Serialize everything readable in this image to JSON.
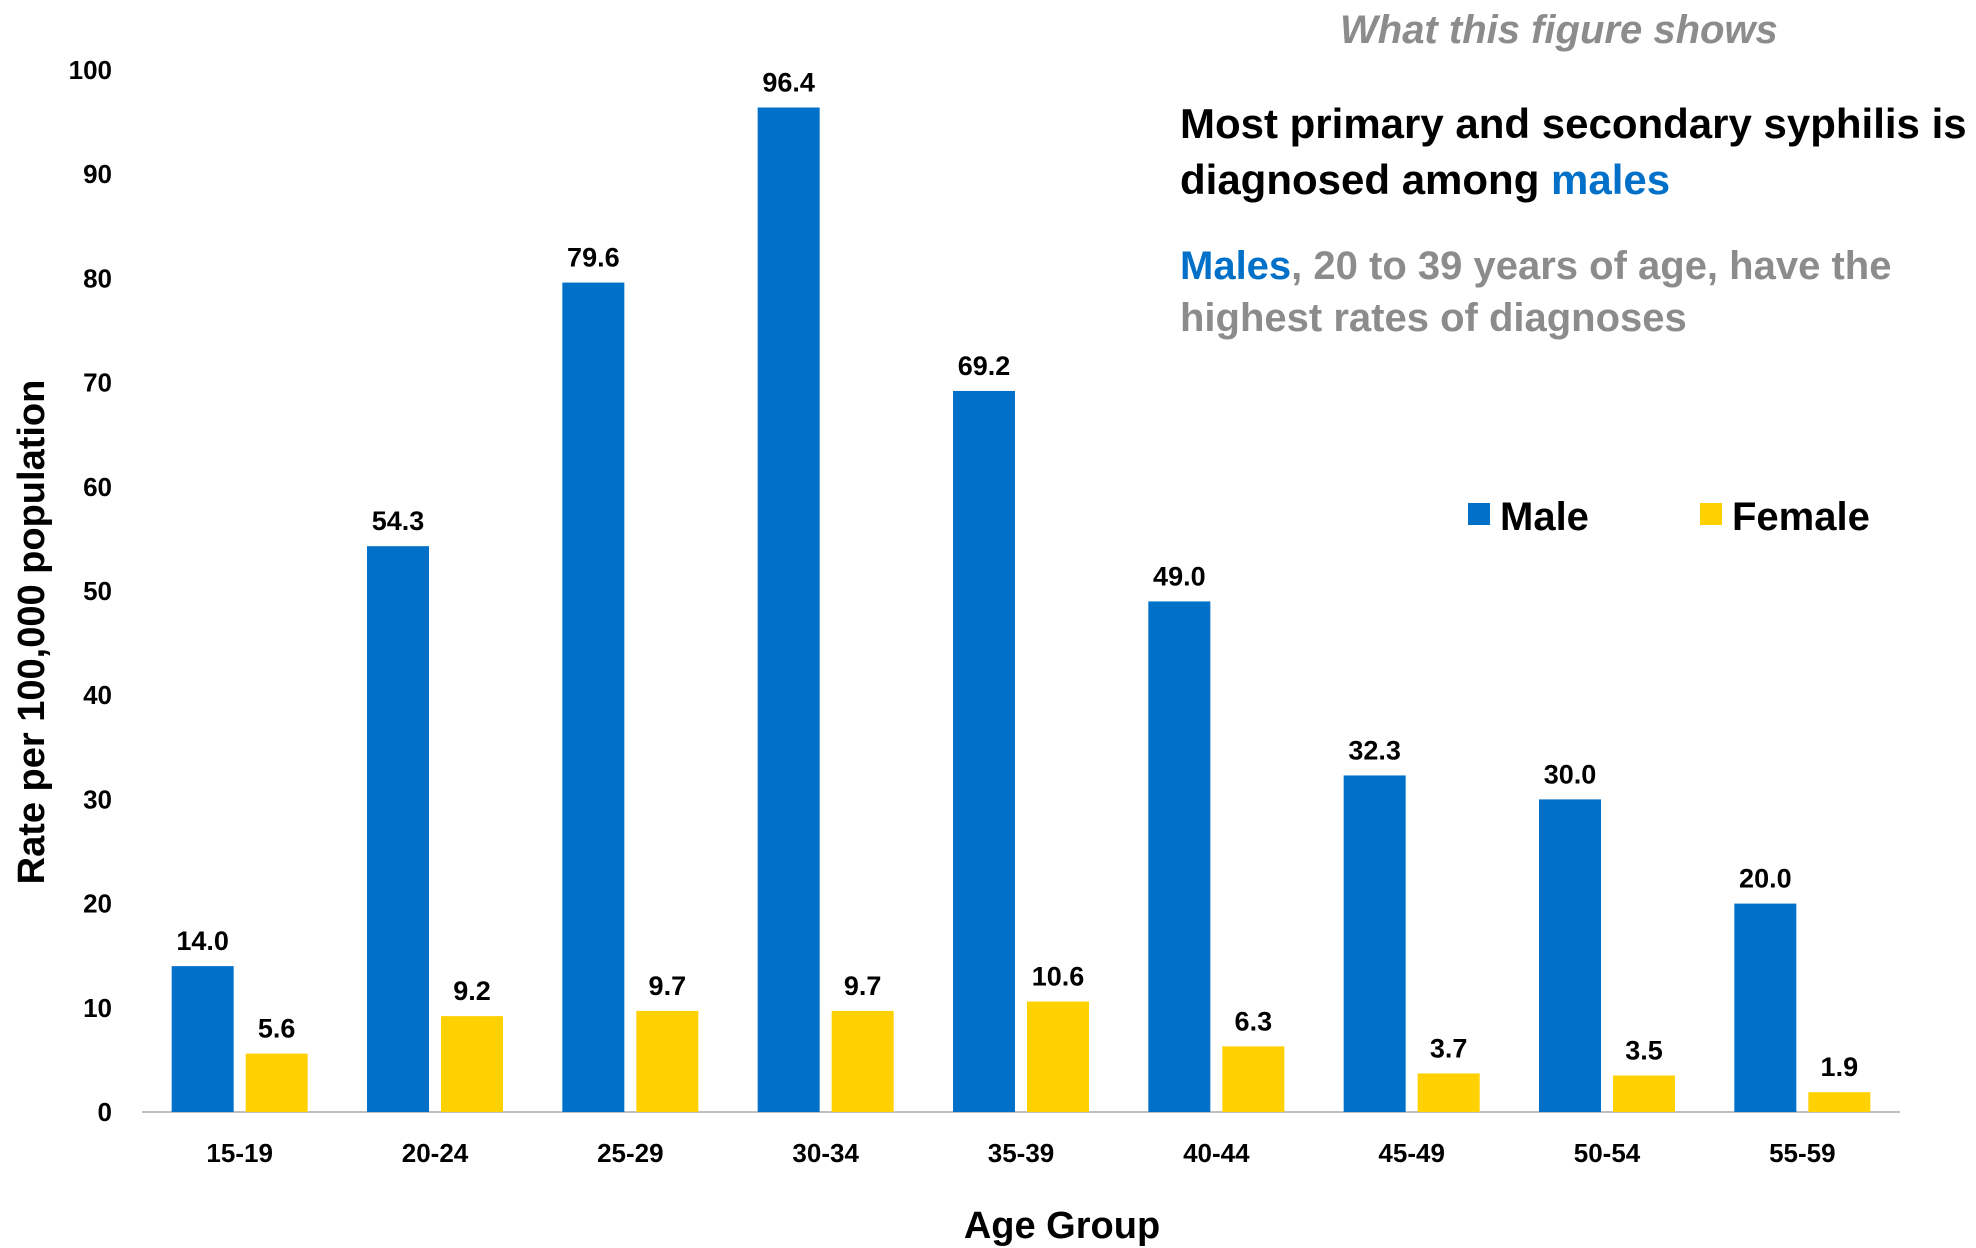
{
  "chart_data": {
    "type": "bar",
    "categories": [
      "15-19",
      "20-24",
      "25-29",
      "30-34",
      "35-39",
      "40-44",
      "45-49",
      "50-54",
      "55-59"
    ],
    "series": [
      {
        "name": "Male",
        "color": "#0070c8",
        "values": [
          14.0,
          54.3,
          79.6,
          96.4,
          69.2,
          49.0,
          32.3,
          30.0,
          20.0
        ],
        "labels": [
          "14.0",
          "54.3",
          "79.6",
          "96.4",
          "69.2",
          "49.0",
          "32.3",
          "30.0",
          "20.0"
        ]
      },
      {
        "name": "Female",
        "color": "#ffd100",
        "values": [
          5.6,
          9.2,
          9.7,
          9.7,
          10.6,
          6.3,
          3.7,
          3.5,
          1.9
        ],
        "labels": [
          "5.6",
          "9.2",
          "9.7",
          "9.7",
          "10.6",
          "6.3",
          "3.7",
          "3.5",
          "1.9"
        ]
      }
    ],
    "xlabel": "Age Group",
    "ylabel": "Rate per 100,000 population",
    "ylim": [
      0,
      100
    ],
    "yticks": [
      0,
      10,
      20,
      30,
      40,
      50,
      60,
      70,
      80,
      90,
      100
    ],
    "grid": false,
    "legend_position": "right"
  },
  "annotation": {
    "kicker": "What this figure shows",
    "headline": "Most primary and secondary syphilis is diagnosed among",
    "headline_highlight": "males",
    "subtext_highlight": "Males",
    "subtext": ", 20 to 39 years of age, have the highest rates of diagnoses"
  }
}
